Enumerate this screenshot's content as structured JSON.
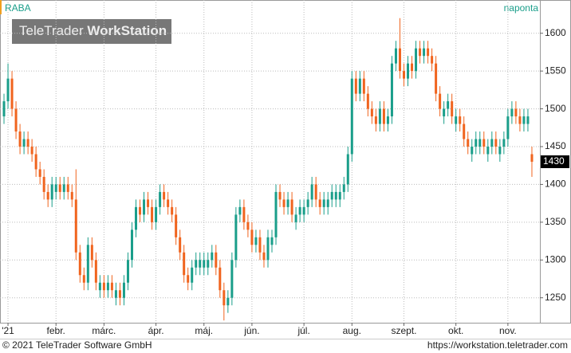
{
  "header": {
    "symbol": "RABA",
    "period": "naponta",
    "watermark_light": "TeleTrader",
    "watermark_bold": "WorkStation"
  },
  "footer": {
    "copyright": "© 2021 TeleTrader Software GmbH",
    "url": "https://workstation.teletrader.com"
  },
  "chart_data": {
    "type": "candlestick",
    "up_color": "#1a9e8a",
    "down_color": "#f0641e",
    "grid": true,
    "xlim": [
      0,
      135
    ],
    "ylim": [
      1217,
      1644
    ],
    "yticks": [
      1250,
      1300,
      1350,
      1400,
      1450,
      1500,
      1550,
      1600
    ],
    "xticks": [
      {
        "value": 2,
        "label": "'21"
      },
      {
        "value": 14,
        "label": "febr."
      },
      {
        "value": 26,
        "label": "márc."
      },
      {
        "value": 39,
        "label": "ápr."
      },
      {
        "value": 51,
        "label": "máj."
      },
      {
        "value": 63,
        "label": "jún."
      },
      {
        "value": 76,
        "label": "júl."
      },
      {
        "value": 88,
        "label": "aug."
      },
      {
        "value": 101,
        "label": "szept."
      },
      {
        "value": 114,
        "label": "okt."
      },
      {
        "value": 127,
        "label": "nov."
      }
    ],
    "open": [
      1490,
      1510,
      1540,
      1500,
      1470,
      1450,
      1460,
      1450,
      1440,
      1420,
      1410,
      1390,
      1380,
      1390,
      1400,
      1390,
      1400,
      1390,
      1380,
      1310,
      1280,
      1270,
      1320,
      1300,
      1260,
      1270,
      1260,
      1270,
      1250,
      1260,
      1250,
      1270,
      1300,
      1340,
      1370,
      1360,
      1380,
      1370,
      1350,
      1370,
      1390,
      1380,
      1370,
      1360,
      1330,
      1310,
      1280,
      1270,
      1290,
      1290,
      1290,
      1290,
      1300,
      1310,
      1290,
      1260,
      1240,
      1250,
      1300,
      1360,
      1370,
      1350,
      1340,
      1320,
      1330,
      1310,
      1300,
      1320,
      1330,
      1390,
      1380,
      1370,
      1380,
      1350,
      1360,
      1360,
      1370,
      1380,
      1400,
      1380,
      1370,
      1370,
      1380,
      1380,
      1380,
      1390,
      1400,
      1440,
      1540,
      1520,
      1540,
      1520,
      1500,
      1490,
      1480,
      1500,
      1480,
      1490,
      1560,
      1580,
      1550,
      1540,
      1560,
      1550,
      1580,
      1570,
      1580,
      1570,
      1560,
      1520,
      1490,
      1500,
      1510,
      1480,
      1490,
      1480,
      1460,
      1440,
      1450,
      1450,
      1460,
      1440,
      1450,
      1460,
      1440,
      1450,
      1460,
      1490,
      1500,
      1490,
      1480,
      1480,
      1440
    ],
    "high": [
      1520,
      1560,
      1550,
      1510,
      1480,
      1470,
      1470,
      1460,
      1450,
      1430,
      1420,
      1400,
      1410,
      1410,
      1410,
      1410,
      1410,
      1400,
      1420,
      1320,
      1290,
      1330,
      1330,
      1310,
      1280,
      1280,
      1280,
      1280,
      1270,
      1270,
      1280,
      1310,
      1350,
      1380,
      1380,
      1390,
      1390,
      1380,
      1380,
      1400,
      1400,
      1390,
      1380,
      1370,
      1340,
      1320,
      1290,
      1300,
      1310,
      1310,
      1310,
      1310,
      1320,
      1320,
      1300,
      1270,
      1260,
      1310,
      1370,
      1380,
      1380,
      1360,
      1350,
      1340,
      1340,
      1320,
      1340,
      1340,
      1400,
      1400,
      1390,
      1390,
      1390,
      1370,
      1380,
      1380,
      1390,
      1410,
      1410,
      1390,
      1390,
      1390,
      1400,
      1400,
      1400,
      1410,
      1450,
      1550,
      1550,
      1550,
      1550,
      1530,
      1510,
      1500,
      1510,
      1510,
      1500,
      1570,
      1590,
      1620,
      1560,
      1570,
      1570,
      1590,
      1590,
      1590,
      1590,
      1580,
      1570,
      1530,
      1510,
      1520,
      1520,
      1500,
      1500,
      1490,
      1470,
      1460,
      1470,
      1470,
      1470,
      1460,
      1470,
      1470,
      1460,
      1470,
      1500,
      1510,
      1510,
      1500,
      1500,
      1500,
      1450
    ],
    "low": [
      1480,
      1500,
      1490,
      1460,
      1440,
      1440,
      1440,
      1430,
      1410,
      1400,
      1380,
      1370,
      1370,
      1380,
      1380,
      1380,
      1380,
      1370,
      1300,
      1270,
      1260,
      1260,
      1290,
      1260,
      1250,
      1250,
      1250,
      1250,
      1240,
      1240,
      1240,
      1260,
      1290,
      1330,
      1350,
      1350,
      1360,
      1340,
      1340,
      1360,
      1370,
      1360,
      1350,
      1320,
      1300,
      1270,
      1260,
      1260,
      1280,
      1280,
      1280,
      1280,
      1290,
      1280,
      1250,
      1220,
      1230,
      1240,
      1290,
      1350,
      1340,
      1330,
      1310,
      1310,
      1300,
      1290,
      1290,
      1310,
      1320,
      1370,
      1360,
      1360,
      1350,
      1340,
      1350,
      1350,
      1360,
      1370,
      1370,
      1360,
      1360,
      1360,
      1370,
      1370,
      1370,
      1380,
      1390,
      1430,
      1510,
      1510,
      1510,
      1490,
      1480,
      1470,
      1470,
      1470,
      1470,
      1480,
      1550,
      1540,
      1530,
      1530,
      1540,
      1540,
      1560,
      1560,
      1560,
      1550,
      1510,
      1490,
      1480,
      1490,
      1480,
      1470,
      1470,
      1450,
      1440,
      1430,
      1440,
      1440,
      1440,
      1430,
      1440,
      1440,
      1430,
      1440,
      1450,
      1480,
      1480,
      1470,
      1470,
      1470,
      1410
    ],
    "close": [
      1510,
      1540,
      1500,
      1470,
      1450,
      1460,
      1450,
      1440,
      1420,
      1410,
      1390,
      1380,
      1400,
      1400,
      1390,
      1400,
      1390,
      1380,
      1310,
      1280,
      1270,
      1320,
      1300,
      1270,
      1270,
      1260,
      1270,
      1260,
      1260,
      1250,
      1270,
      1300,
      1340,
      1370,
      1360,
      1380,
      1370,
      1350,
      1370,
      1390,
      1380,
      1370,
      1360,
      1330,
      1310,
      1280,
      1270,
      1290,
      1300,
      1300,
      1300,
      1300,
      1310,
      1290,
      1260,
      1240,
      1250,
      1300,
      1360,
      1370,
      1350,
      1340,
      1320,
      1330,
      1310,
      1300,
      1330,
      1330,
      1390,
      1380,
      1370,
      1380,
      1360,
      1360,
      1370,
      1370,
      1380,
      1400,
      1380,
      1370,
      1380,
      1380,
      1390,
      1390,
      1390,
      1400,
      1440,
      1540,
      1520,
      1540,
      1520,
      1500,
      1490,
      1480,
      1500,
      1480,
      1490,
      1560,
      1580,
      1550,
      1540,
      1560,
      1550,
      1580,
      1570,
      1580,
      1570,
      1560,
      1520,
      1500,
      1500,
      1510,
      1490,
      1490,
      1480,
      1460,
      1450,
      1450,
      1460,
      1460,
      1450,
      1450,
      1460,
      1450,
      1450,
      1460,
      1490,
      1500,
      1490,
      1480,
      1490,
      1490,
      1430
    ]
  }
}
